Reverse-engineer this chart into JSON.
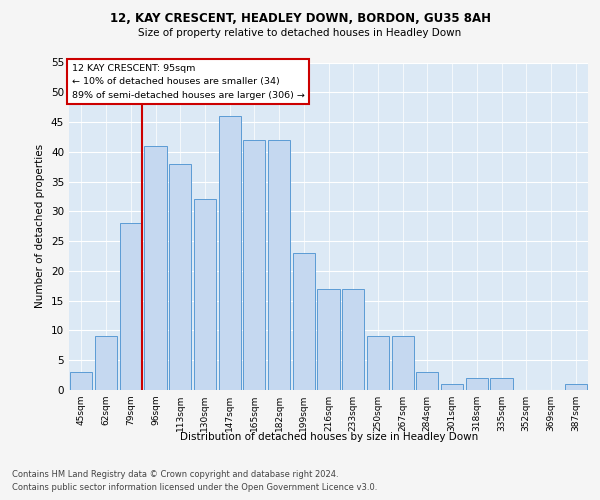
{
  "title1": "12, KAY CRESCENT, HEADLEY DOWN, BORDON, GU35 8AH",
  "title2": "Size of property relative to detached houses in Headley Down",
  "xlabel": "Distribution of detached houses by size in Headley Down",
  "ylabel": "Number of detached properties",
  "categories": [
    "45sqm",
    "62sqm",
    "79sqm",
    "96sqm",
    "113sqm",
    "130sqm",
    "147sqm",
    "165sqm",
    "182sqm",
    "199sqm",
    "216sqm",
    "233sqm",
    "250sqm",
    "267sqm",
    "284sqm",
    "301sqm",
    "318sqm",
    "335sqm",
    "352sqm",
    "369sqm",
    "387sqm"
  ],
  "values": [
    3,
    9,
    28,
    41,
    38,
    32,
    46,
    42,
    42,
    23,
    17,
    17,
    9,
    9,
    3,
    1,
    2,
    2,
    0,
    0,
    1
  ],
  "bar_color": "#c5d8f0",
  "bar_edge_color": "#5b9bd5",
  "marker_label": "12 KAY CRESCENT: 95sqm",
  "marker_line1": "← 10% of detached houses are smaller (34)",
  "marker_line2": "89% of semi-detached houses are larger (306) →",
  "annotation_box_color": "#ffffff",
  "annotation_box_edge": "#cc0000",
  "marker_line_color": "#cc0000",
  "ylim": [
    0,
    55
  ],
  "yticks": [
    0,
    5,
    10,
    15,
    20,
    25,
    30,
    35,
    40,
    45,
    50,
    55
  ],
  "footnote1": "Contains HM Land Registry data © Crown copyright and database right 2024.",
  "footnote2": "Contains public sector information licensed under the Open Government Licence v3.0.",
  "fig_bg_color": "#f5f5f5",
  "plot_bg_color": "#dce9f5"
}
